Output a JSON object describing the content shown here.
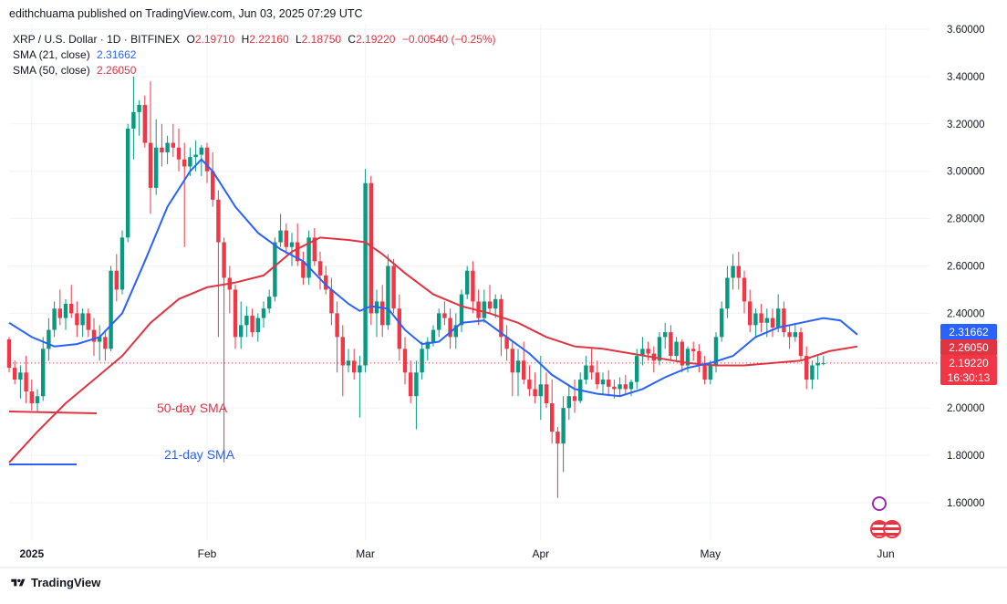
{
  "header": {
    "published_by": "edithchuama published on TradingView.com, Jun 03, 2025 07:29 UTC"
  },
  "legend": {
    "symbol": "XRP / U.S. Dollar · 1D · BITFINEX",
    "o_label": "O",
    "o_value": "2.19710",
    "h_label": "H",
    "h_value": "2.22160",
    "l_label": "L",
    "l_value": "2.18750",
    "c_label": "C",
    "c_value": "2.19220",
    "change": "−0.00540 (−0.25%)",
    "sma21_label": "SMA (21, close)",
    "sma21_value": "2.31662",
    "sma50_label": "SMA (50, close)",
    "sma50_value": "2.26050"
  },
  "annotations": {
    "sma50_text": "50-day SMA",
    "sma21_text": "21-day SMA"
  },
  "price_tags": {
    "sma21": "2.31662",
    "sma50": "2.26050",
    "last": "2.19220",
    "countdown": "16:30:13"
  },
  "footer": {
    "brand": "TradingView"
  },
  "colors": {
    "up": "#089981",
    "down": "#f23645",
    "sma21": "#2962ff",
    "sma50": "#e13443",
    "grid": "#f0f3fa"
  },
  "chart_data": {
    "type": "candlestick",
    "title": "XRP / U.S. Dollar · 1D · BITFINEX",
    "ylim": [
      1.5,
      3.65
    ],
    "y_ticks": [
      "3.60000",
      "3.40000",
      "3.20000",
      "3.00000",
      "2.80000",
      "2.60000",
      "2.40000",
      "2.20000",
      "2.00000",
      "1.80000",
      "1.60000"
    ],
    "x_ticks": [
      "2025",
      "Feb",
      "Mar",
      "Apr",
      "May",
      "Jun"
    ],
    "x_tick_days": [
      4,
      35,
      63,
      94,
      124,
      155
    ],
    "grid": true,
    "first_day": "2024-12-28",
    "ohlc": [
      [
        2.29,
        2.3,
        2.15,
        2.17
      ],
      [
        2.17,
        2.2,
        2.1,
        2.12
      ],
      [
        2.12,
        2.18,
        2.04,
        2.15
      ],
      [
        2.15,
        2.22,
        2.02,
        2.07
      ],
      [
        2.07,
        2.12,
        1.99,
        2.02
      ],
      [
        2.02,
        2.08,
        1.98,
        2.05
      ],
      [
        2.05,
        2.3,
        2.03,
        2.25
      ],
      [
        2.25,
        2.38,
        2.2,
        2.33
      ],
      [
        2.33,
        2.45,
        2.3,
        2.42
      ],
      [
        2.42,
        2.5,
        2.35,
        2.38
      ],
      [
        2.38,
        2.46,
        2.33,
        2.44
      ],
      [
        2.44,
        2.52,
        2.38,
        2.4
      ],
      [
        2.4,
        2.45,
        2.3,
        2.35
      ],
      [
        2.35,
        2.42,
        2.3,
        2.4
      ],
      [
        2.4,
        2.42,
        2.3,
        2.33
      ],
      [
        2.33,
        2.38,
        2.22,
        2.28
      ],
      [
        2.28,
        2.35,
        2.2,
        2.3
      ],
      [
        2.3,
        2.32,
        2.2,
        2.25
      ],
      [
        2.25,
        2.6,
        2.24,
        2.58
      ],
      [
        2.58,
        2.65,
        2.45,
        2.5
      ],
      [
        2.5,
        2.75,
        2.48,
        2.72
      ],
      [
        2.72,
        3.2,
        2.7,
        3.18
      ],
      [
        3.18,
        3.4,
        3.05,
        3.25
      ],
      [
        3.25,
        3.3,
        3.15,
        3.28
      ],
      [
        3.28,
        3.32,
        3.1,
        3.12
      ],
      [
        3.12,
        3.38,
        2.82,
        2.93
      ],
      [
        2.93,
        3.22,
        2.9,
        3.1
      ],
      [
        3.1,
        3.2,
        3.02,
        3.08
      ],
      [
        3.08,
        3.15,
        3.03,
        3.12
      ],
      [
        3.12,
        3.2,
        3.06,
        3.1
      ],
      [
        3.1,
        3.18,
        3.0,
        3.05
      ],
      [
        3.05,
        3.12,
        2.68,
        3.02
      ],
      [
        3.02,
        3.1,
        2.98,
        3.06
      ],
      [
        3.06,
        3.13,
        3.0,
        3.07
      ],
      [
        3.07,
        3.11,
        2.98,
        3.1
      ],
      [
        3.1,
        3.12,
        2.95,
        3.0
      ],
      [
        3.0,
        3.08,
        2.85,
        2.88
      ],
      [
        2.88,
        2.92,
        2.3,
        2.7
      ],
      [
        2.7,
        2.72,
        1.77,
        2.55
      ],
      [
        2.55,
        2.6,
        2.4,
        2.5
      ],
      [
        2.5,
        2.52,
        2.25,
        2.3
      ],
      [
        2.3,
        2.45,
        2.25,
        2.35
      ],
      [
        2.35,
        2.43,
        2.3,
        2.39
      ],
      [
        2.39,
        2.42,
        2.3,
        2.32
      ],
      [
        2.32,
        2.4,
        2.28,
        2.38
      ],
      [
        2.38,
        2.45,
        2.34,
        2.42
      ],
      [
        2.42,
        2.5,
        2.4,
        2.47
      ],
      [
        2.47,
        2.72,
        2.45,
        2.7
      ],
      [
        2.7,
        2.82,
        2.68,
        2.75
      ],
      [
        2.75,
        2.78,
        2.65,
        2.68
      ],
      [
        2.68,
        2.74,
        2.6,
        2.7
      ],
      [
        2.7,
        2.78,
        2.6,
        2.62
      ],
      [
        2.62,
        2.66,
        2.52,
        2.55
      ],
      [
        2.55,
        2.75,
        2.52,
        2.72
      ],
      [
        2.72,
        2.76,
        2.6,
        2.62
      ],
      [
        2.62,
        2.66,
        2.5,
        2.56
      ],
      [
        2.56,
        2.6,
        2.48,
        2.5
      ],
      [
        2.5,
        2.55,
        2.35,
        2.4
      ],
      [
        2.4,
        2.45,
        2.15,
        2.3
      ],
      [
        2.3,
        2.35,
        2.05,
        2.18
      ],
      [
        2.18,
        2.25,
        2.15,
        2.2
      ],
      [
        2.2,
        2.25,
        2.12,
        2.15
      ],
      [
        2.15,
        2.22,
        1.96,
        2.18
      ],
      [
        2.18,
        3.01,
        2.15,
        2.95
      ],
      [
        2.95,
        2.98,
        2.35,
        2.4
      ],
      [
        2.4,
        2.5,
        2.3,
        2.45
      ],
      [
        2.45,
        2.52,
        2.3,
        2.35
      ],
      [
        2.35,
        2.65,
        2.33,
        2.6
      ],
      [
        2.6,
        2.63,
        2.4,
        2.42
      ],
      [
        2.42,
        2.48,
        2.2,
        2.25
      ],
      [
        2.25,
        2.3,
        2.1,
        2.15
      ],
      [
        2.15,
        2.2,
        2.02,
        2.05
      ],
      [
        2.05,
        2.2,
        1.91,
        2.15
      ],
      [
        2.15,
        2.28,
        2.12,
        2.25
      ],
      [
        2.25,
        2.3,
        2.2,
        2.28
      ],
      [
        2.28,
        2.35,
        2.26,
        2.33
      ],
      [
        2.33,
        2.42,
        2.3,
        2.4
      ],
      [
        2.4,
        2.45,
        2.35,
        2.38
      ],
      [
        2.38,
        2.42,
        2.25,
        2.3
      ],
      [
        2.3,
        2.4,
        2.25,
        2.35
      ],
      [
        2.35,
        2.5,
        2.32,
        2.48
      ],
      [
        2.48,
        2.6,
        2.46,
        2.58
      ],
      [
        2.58,
        2.62,
        2.4,
        2.45
      ],
      [
        2.45,
        2.5,
        2.35,
        2.38
      ],
      [
        2.38,
        2.5,
        2.36,
        2.45
      ],
      [
        2.45,
        2.52,
        2.4,
        2.42
      ],
      [
        2.42,
        2.48,
        2.38,
        2.46
      ],
      [
        2.46,
        2.48,
        2.22,
        2.3
      ],
      [
        2.3,
        2.35,
        2.2,
        2.25
      ],
      [
        2.25,
        2.28,
        2.05,
        2.15
      ],
      [
        2.15,
        2.25,
        2.05,
        2.2
      ],
      [
        2.2,
        2.28,
        2.1,
        2.12
      ],
      [
        2.12,
        2.18,
        2.05,
        2.08
      ],
      [
        2.08,
        2.15,
        2.02,
        2.05
      ],
      [
        2.05,
        2.22,
        1.95,
        2.1
      ],
      [
        2.1,
        2.15,
        2.0,
        2.02
      ],
      [
        2.02,
        2.12,
        1.85,
        1.9
      ],
      [
        1.9,
        1.92,
        1.62,
        1.85
      ],
      [
        1.85,
        2.05,
        1.73,
        2.0
      ],
      [
        2.0,
        2.1,
        1.95,
        2.05
      ],
      [
        2.05,
        2.12,
        1.98,
        2.03
      ],
      [
        2.03,
        2.15,
        2.02,
        2.12
      ],
      [
        2.12,
        2.22,
        2.1,
        2.18
      ],
      [
        2.18,
        2.25,
        2.12,
        2.15
      ],
      [
        2.15,
        2.2,
        2.08,
        2.1
      ],
      [
        2.1,
        2.15,
        2.06,
        2.12
      ],
      [
        2.12,
        2.16,
        2.05,
        2.09
      ],
      [
        2.09,
        2.12,
        2.04,
        2.08
      ],
      [
        2.08,
        2.13,
        2.05,
        2.1
      ],
      [
        2.1,
        2.14,
        2.06,
        2.08
      ],
      [
        2.08,
        2.12,
        2.05,
        2.11
      ],
      [
        2.11,
        2.25,
        2.08,
        2.22
      ],
      [
        2.22,
        2.3,
        2.18,
        2.25
      ],
      [
        2.25,
        2.28,
        2.2,
        2.23
      ],
      [
        2.23,
        2.26,
        2.15,
        2.2
      ],
      [
        2.2,
        2.32,
        2.18,
        2.3
      ],
      [
        2.3,
        2.36,
        2.25,
        2.32
      ],
      [
        2.32,
        2.35,
        2.2,
        2.22
      ],
      [
        2.22,
        2.3,
        2.2,
        2.28
      ],
      [
        2.28,
        2.29,
        2.15,
        2.18
      ],
      [
        2.18,
        2.26,
        2.15,
        2.25
      ],
      [
        2.25,
        2.28,
        2.2,
        2.24
      ],
      [
        2.24,
        2.27,
        2.15,
        2.18
      ],
      [
        2.18,
        2.22,
        2.1,
        2.12
      ],
      [
        2.12,
        2.2,
        2.1,
        2.18
      ],
      [
        2.18,
        2.32,
        2.15,
        2.3
      ],
      [
        2.3,
        2.45,
        2.28,
        2.42
      ],
      [
        2.42,
        2.6,
        2.38,
        2.55
      ],
      [
        2.55,
        2.65,
        2.5,
        2.6
      ],
      [
        2.6,
        2.66,
        2.5,
        2.55
      ],
      [
        2.55,
        2.58,
        2.4,
        2.45
      ],
      [
        2.45,
        2.5,
        2.32,
        2.35
      ],
      [
        2.35,
        2.42,
        2.3,
        2.4
      ],
      [
        2.4,
        2.44,
        2.32,
        2.36
      ],
      [
        2.36,
        2.42,
        2.3,
        2.38
      ],
      [
        2.38,
        2.42,
        2.3,
        2.34
      ],
      [
        2.34,
        2.48,
        2.32,
        2.42
      ],
      [
        2.42,
        2.45,
        2.3,
        2.32
      ],
      [
        2.32,
        2.35,
        2.25,
        2.3
      ],
      [
        2.3,
        2.36,
        2.28,
        2.32
      ],
      [
        2.32,
        2.34,
        2.2,
        2.22
      ],
      [
        2.22,
        2.26,
        2.08,
        2.12
      ],
      [
        2.12,
        2.2,
        2.08,
        2.18
      ],
      [
        2.18,
        2.22,
        2.12,
        2.19
      ],
      [
        2.19,
        2.22,
        2.18,
        2.19
      ]
    ],
    "sma21": [
      [
        0,
        2.36
      ],
      [
        4,
        2.3
      ],
      [
        8,
        2.26
      ],
      [
        12,
        2.27
      ],
      [
        16,
        2.3
      ],
      [
        20,
        2.4
      ],
      [
        24,
        2.62
      ],
      [
        28,
        2.85
      ],
      [
        32,
        3.0
      ],
      [
        34,
        3.05
      ],
      [
        36,
        3.0
      ],
      [
        40,
        2.85
      ],
      [
        44,
        2.74
      ],
      [
        48,
        2.67
      ],
      [
        52,
        2.62
      ],
      [
        56,
        2.52
      ],
      [
        60,
        2.44
      ],
      [
        62,
        2.41
      ],
      [
        64,
        2.43
      ],
      [
        67,
        2.42
      ],
      [
        70,
        2.33
      ],
      [
        73,
        2.27
      ],
      [
        76,
        2.28
      ],
      [
        80,
        2.36
      ],
      [
        84,
        2.37
      ],
      [
        88,
        2.3
      ],
      [
        92,
        2.23
      ],
      [
        96,
        2.14
      ],
      [
        100,
        2.08
      ],
      [
        104,
        2.06
      ],
      [
        108,
        2.05
      ],
      [
        112,
        2.08
      ],
      [
        116,
        2.13
      ],
      [
        120,
        2.17
      ],
      [
        124,
        2.19
      ],
      [
        128,
        2.22
      ],
      [
        132,
        2.3
      ],
      [
        136,
        2.34
      ],
      [
        140,
        2.36
      ],
      [
        144,
        2.38
      ],
      [
        147,
        2.37
      ],
      [
        150,
        2.31
      ]
    ],
    "sma50": [
      [
        0,
        1.77
      ],
      [
        5,
        1.9
      ],
      [
        10,
        2.02
      ],
      [
        15,
        2.12
      ],
      [
        20,
        2.22
      ],
      [
        25,
        2.36
      ],
      [
        30,
        2.46
      ],
      [
        35,
        2.51
      ],
      [
        40,
        2.53
      ],
      [
        45,
        2.56
      ],
      [
        50,
        2.66
      ],
      [
        55,
        2.72
      ],
      [
        60,
        2.71
      ],
      [
        63,
        2.7
      ],
      [
        66,
        2.65
      ],
      [
        70,
        2.57
      ],
      [
        75,
        2.48
      ],
      [
        80,
        2.43
      ],
      [
        85,
        2.4
      ],
      [
        90,
        2.36
      ],
      [
        95,
        2.3
      ],
      [
        100,
        2.26
      ],
      [
        105,
        2.25
      ],
      [
        110,
        2.23
      ],
      [
        115,
        2.21
      ],
      [
        120,
        2.19
      ],
      [
        125,
        2.18
      ],
      [
        130,
        2.18
      ],
      [
        135,
        2.19
      ],
      [
        140,
        2.2
      ],
      [
        145,
        2.24
      ],
      [
        150,
        2.26
      ]
    ]
  }
}
